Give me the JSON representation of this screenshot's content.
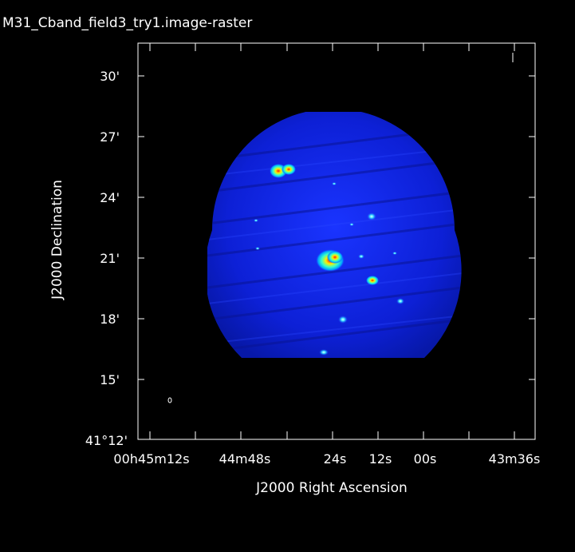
{
  "image": {
    "title": "M31_Cband_field3_try1.image-raster"
  },
  "axes": {
    "y_label": "J2000 Declination",
    "x_label": "J2000 Right Ascension",
    "y_ticks": [
      {
        "label": "30'"
      },
      {
        "label": "27'"
      },
      {
        "label": "24'"
      },
      {
        "label": "21'"
      },
      {
        "label": "18'"
      },
      {
        "label": "15'"
      },
      {
        "label": "41°12'"
      }
    ],
    "x_ticks": [
      {
        "label": "00h45m12s"
      },
      {
        "label": "44m48s"
      },
      {
        "label": "24s"
      },
      {
        "label": "12s"
      },
      {
        "label": "00s"
      },
      {
        "label": "43m36s"
      }
    ]
  },
  "colors": {
    "background": "#000000",
    "field": "#0d1fd9",
    "source_peak": "#ff2000",
    "source_mid": "#ffee00",
    "source_low": "#00e5ff"
  }
}
